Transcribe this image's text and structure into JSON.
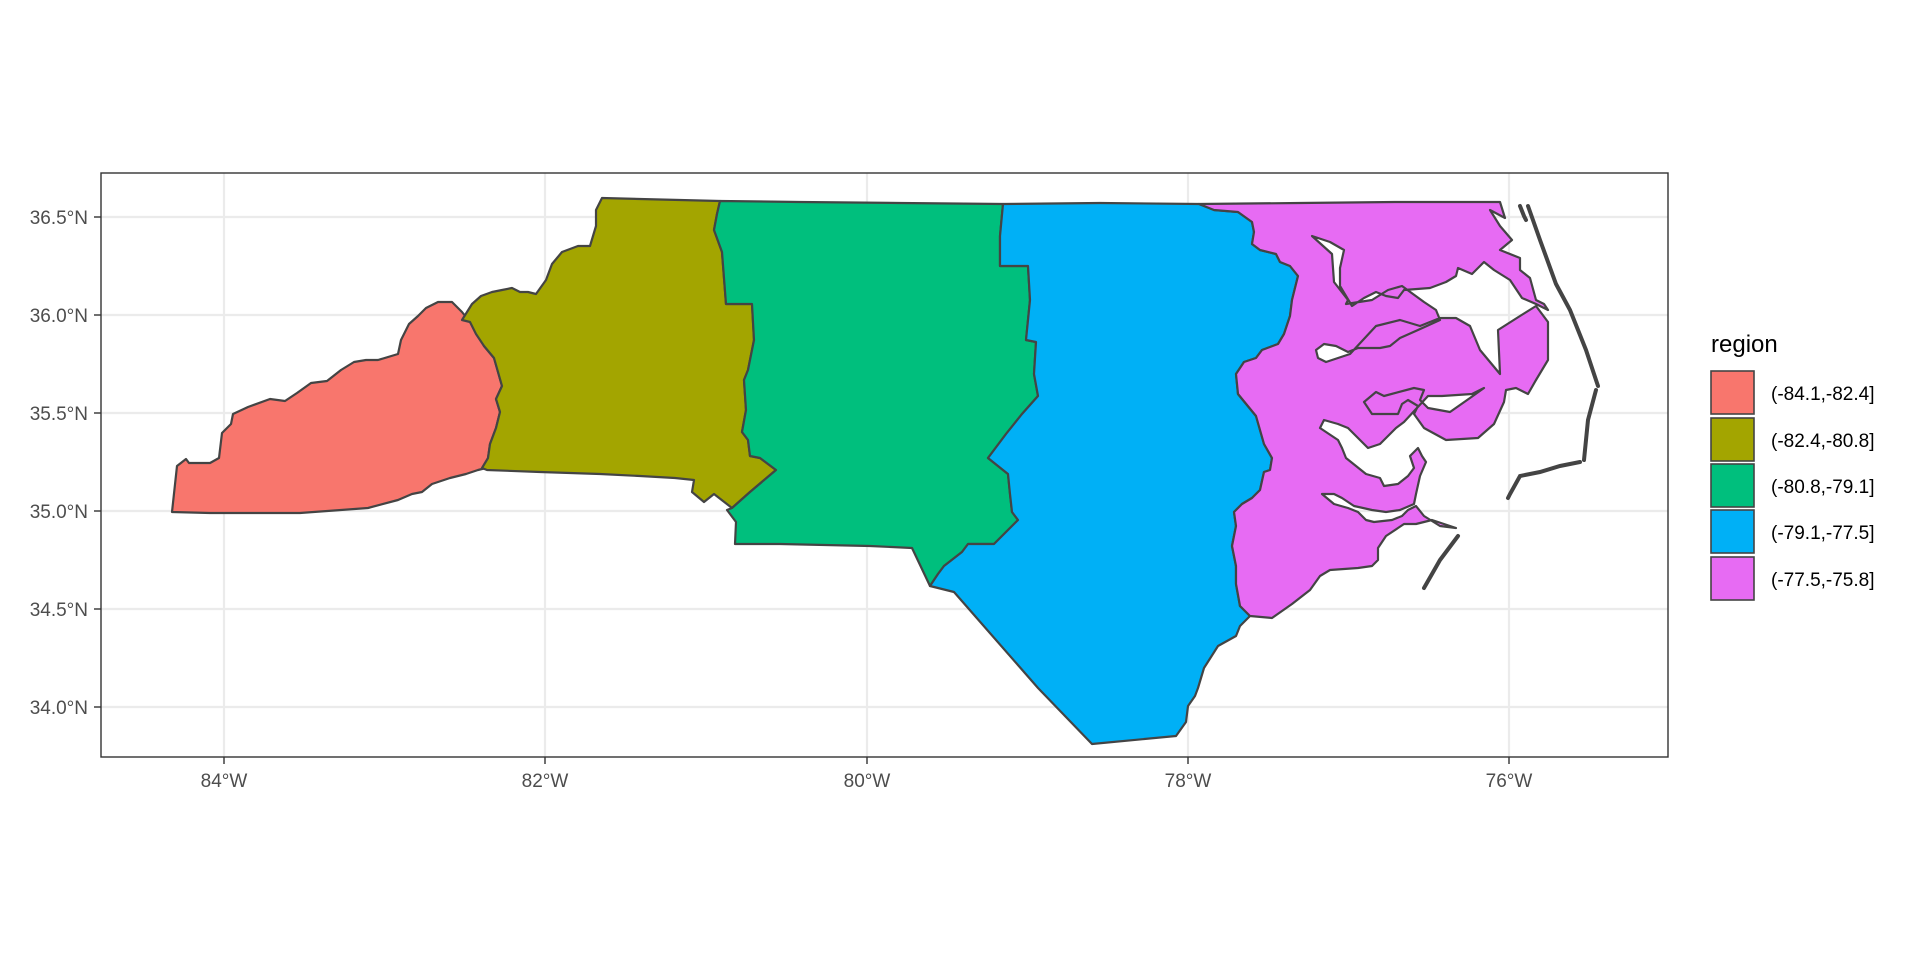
{
  "map": {
    "legend": {
      "title": "region",
      "items": [
        {
          "label": "(-84.1,-82.4]",
          "color": "#F8766D"
        },
        {
          "label": "(-82.4,-80.8]",
          "color": "#A3A500"
        },
        {
          "label": "(-80.8,-79.1]",
          "color": "#00BF7D"
        },
        {
          "label": "(-79.1,-77.5]",
          "color": "#00B0F6"
        },
        {
          "label": "(-77.5,-75.8]",
          "color": "#E76BF3"
        }
      ]
    },
    "x_axis": {
      "ticks": [
        "84°W",
        "82°W",
        "80°W",
        "78°W",
        "76°W"
      ]
    },
    "y_axis": {
      "ticks": [
        "36.5°N",
        "36.0°N",
        "35.5°N",
        "35.0°N",
        "34.5°N",
        "34.0°N"
      ]
    },
    "panel": {
      "border_color": "#333333",
      "grid_color": "#ebebeb",
      "outline_color": "#444444"
    }
  }
}
